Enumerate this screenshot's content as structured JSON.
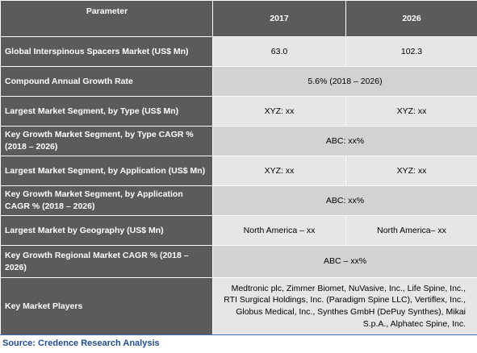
{
  "table": {
    "headers": [
      "Parameter",
      "2017",
      "2026"
    ],
    "rows": [
      {
        "parameter": "Global Interspinous Spacers Market (US$ Mn)",
        "v2017": "63.0",
        "v2026": "102.3"
      },
      {
        "parameter": "Compound Annual Growth Rate",
        "span": "5.6% (2018 – 2026)"
      },
      {
        "parameter": "Largest Market Segment, by Type (US$ Mn)",
        "v2017": "XYZ: xx",
        "v2026": "XYZ: xx"
      },
      {
        "parameter": "Key Growth Market Segment, by Type CAGR % (2018 – 2026)",
        "span": "ABC: xx%"
      },
      {
        "parameter": "Largest Market Segment, by Application (US$ Mn)",
        "v2017": "XYZ: xx",
        "v2026": "XYZ: xx"
      },
      {
        "parameter": "Key Growth Market Segment, by Application CAGR % (2018 – 2026)",
        "span": "ABC: xx%"
      },
      {
        "parameter": "Largest Market by Geography (US$ Mn)",
        "v2017": "North America – xx",
        "v2026": "North America– xx"
      },
      {
        "parameter": "Key Growth Regional Market CAGR % (2018 – 2026)",
        "span": "ABC – xx%"
      },
      {
        "parameter": "Key Market Players",
        "span": "Medtronic plc, Zimmer Biomet, NuVasive, Inc., Life Spine, Inc., RTI Surgical Holdings, Inc. (Paradigm Spine LLC), Vertiflex, Inc., Globus Medical, Inc., Synthes GmbH (DePuy Synthes), Mikai S.p.A., Alphatec Spine, Inc."
      }
    ]
  },
  "source": "Source: Credence Research Analysis"
}
